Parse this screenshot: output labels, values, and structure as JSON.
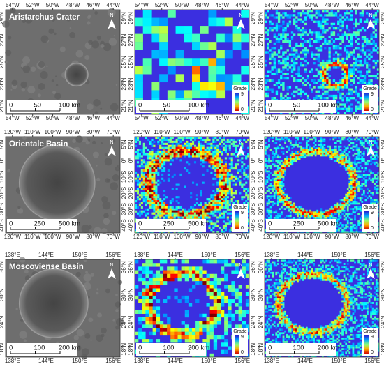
{
  "rows": [
    {
      "title": "Aristarchus Crater",
      "lon_labels": [
        "54°W",
        "52°W",
        "50°W",
        "48°W",
        "46°W",
        "44°W"
      ],
      "lat_labels": [
        "21°N",
        "23°N",
        "25°N",
        "27°N",
        "29°N"
      ],
      "scale_labels": [
        "0",
        "50",
        "100 km"
      ]
    },
    {
      "title": "Orientale Basin",
      "lon_labels": [
        "120°W",
        "110°W",
        "100°W",
        "90°W",
        "80°W",
        "70°W"
      ],
      "lat_labels": [
        "40°S",
        "30°S",
        "20°S",
        "10°S",
        "0°",
        "5°N"
      ],
      "scale_labels": [
        "0",
        "250",
        "500 km"
      ]
    },
    {
      "title": "Moscoviense Basin",
      "lon_labels": [
        "138°E",
        "144°E",
        "150°E",
        "156°E"
      ],
      "lat_labels": [
        "18°N",
        "24°N",
        "30°N",
        "36°N"
      ],
      "scale_labels": [
        "0",
        "100",
        "200 km"
      ]
    }
  ],
  "legend": {
    "title": "Grade",
    "max": "9",
    "min": "0"
  },
  "north": "N"
}
